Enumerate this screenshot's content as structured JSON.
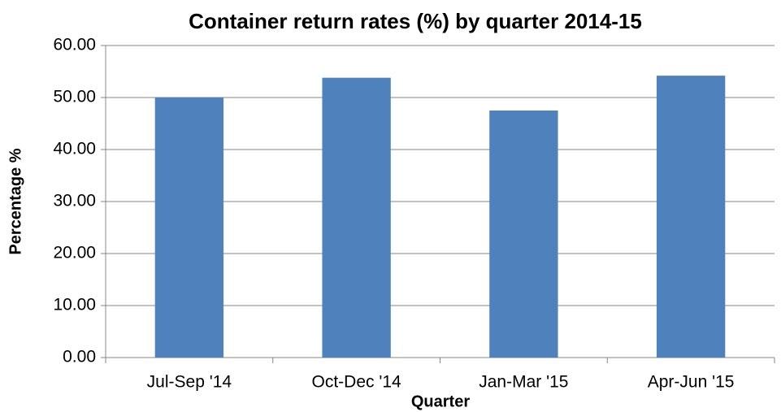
{
  "chart_data": {
    "type": "bar",
    "title": "Container return rates (%) by quarter 2014-15",
    "x_label": "Quarter",
    "y_label": "Percentage %",
    "categories": [
      "Jul-Sep '14",
      "Oct-Dec '14",
      "Jan-Mar '15",
      "Apr-Jun '15"
    ],
    "values": [
      50.0,
      53.8,
      47.5,
      54.2
    ],
    "color": "#4f81bd",
    "ylim": [
      0,
      60
    ],
    "yticks": [
      {
        "value": 0,
        "label": "0.00"
      },
      {
        "value": 10,
        "label": "10.00"
      },
      {
        "value": 20,
        "label": "20.00"
      },
      {
        "value": 30,
        "label": "30.00"
      },
      {
        "value": 40,
        "label": "40.00"
      },
      {
        "value": 50,
        "label": "50.00"
      },
      {
        "value": 60,
        "label": "60.00"
      }
    ],
    "grid": true
  }
}
